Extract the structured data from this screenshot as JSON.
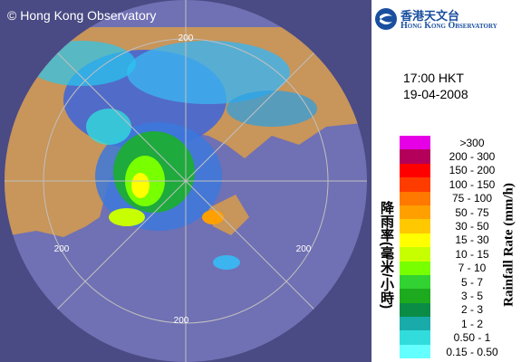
{
  "copyright": "© Hong Kong Observatory",
  "logo": {
    "chinese": "香港天文台",
    "english": "Hong Kong Observatory"
  },
  "time": "17:00 HKT",
  "date": "19-04-2008",
  "legend": {
    "title_en": "Rainfall Rate (mm/h)",
    "title_zh": "降雨率(毫米/小時)",
    "items": [
      {
        "label": ">300",
        "color": "#e600e6"
      },
      {
        "label": "200 - 300",
        "color": "#b4005a"
      },
      {
        "label": "150 - 200",
        "color": "#ff0000"
      },
      {
        "label": "100 - 150",
        "color": "#ff3c00"
      },
      {
        "label": "75 - 100",
        "color": "#ff7800"
      },
      {
        "label": "50 - 75",
        "color": "#ffa000"
      },
      {
        "label": "30 - 50",
        "color": "#ffc800"
      },
      {
        "label": "15 - 30",
        "color": "#ffff00"
      },
      {
        "label": "10 - 15",
        "color": "#c8ff00"
      },
      {
        "label": "7 - 10",
        "color": "#78ff00"
      },
      {
        "label": "5 - 7",
        "color": "#32d232"
      },
      {
        "label": "3 - 5",
        "color": "#1eaa1e"
      },
      {
        "label": "2 - 3",
        "color": "#0a8c46"
      },
      {
        "label": "1 - 2",
        "color": "#19aaaa"
      },
      {
        "label": "0.50 - 1",
        "color": "#32dcdc"
      },
      {
        "label": "0.15 - 0.50",
        "color": "#64ffff"
      }
    ]
  },
  "range_labels": [
    "200",
    "200",
    "200",
    "200"
  ]
}
